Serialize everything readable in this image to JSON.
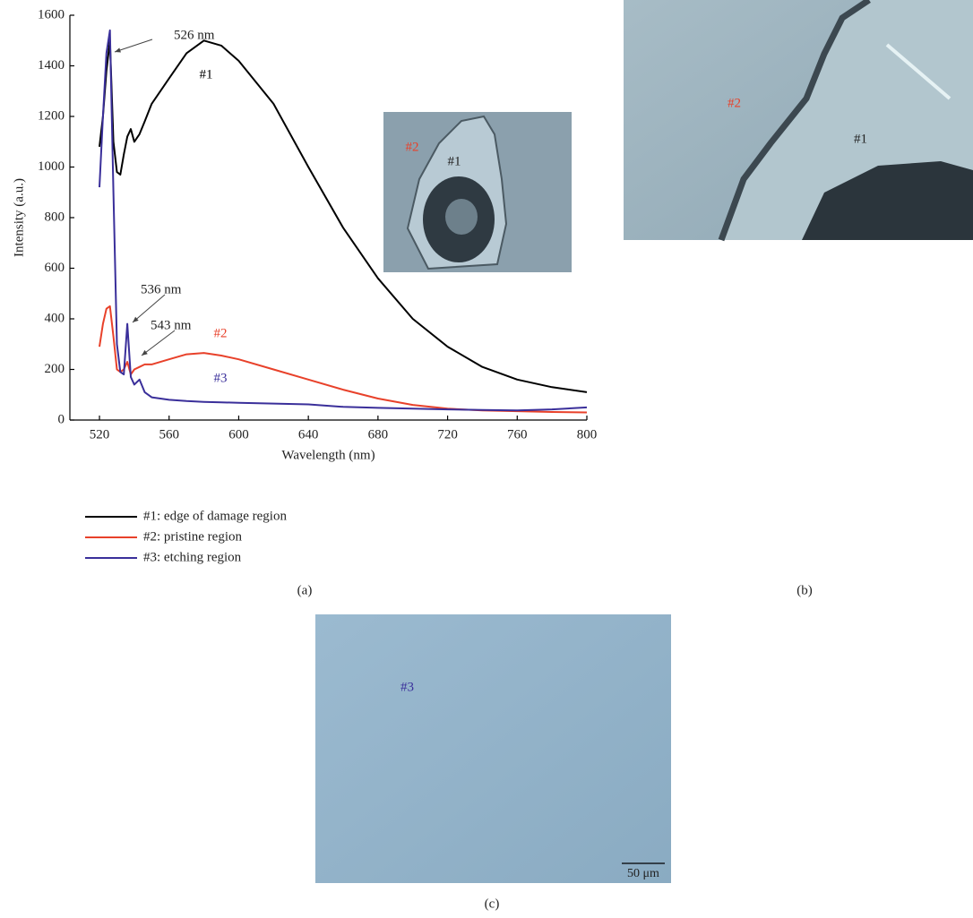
{
  "chart_data": {
    "type": "line",
    "x_label": "Wavelength (nm)",
    "y_label": "Intensity (a.u.)",
    "x": [
      520,
      522,
      524,
      526,
      528,
      530,
      532,
      534,
      536,
      538,
      540,
      543,
      546,
      550,
      560,
      570,
      580,
      590,
      600,
      620,
      640,
      660,
      680,
      700,
      720,
      740,
      760,
      780,
      800
    ],
    "series": [
      {
        "name": "#1: edge of damage region",
        "color": "#000000",
        "values": [
          1080,
          1200,
          1380,
          1500,
          1100,
          980,
          970,
          1050,
          1120,
          1150,
          1100,
          1130,
          1180,
          1250,
          1350,
          1450,
          1500,
          1480,
          1420,
          1250,
          1000,
          760,
          560,
          400,
          290,
          210,
          160,
          130,
          110
        ]
      },
      {
        "name": "#2: pristine region",
        "color": "#e8412a",
        "values": [
          290,
          380,
          440,
          450,
          330,
          200,
          190,
          200,
          230,
          180,
          200,
          210,
          220,
          220,
          240,
          260,
          265,
          255,
          240,
          200,
          160,
          120,
          85,
          60,
          45,
          38,
          35,
          32,
          30
        ]
      },
      {
        "name": "#3: etching region",
        "color": "#3a2f9a",
        "values": [
          920,
          1200,
          1450,
          1540,
          900,
          300,
          190,
          180,
          380,
          170,
          140,
          160,
          110,
          90,
          80,
          75,
          72,
          70,
          68,
          65,
          62,
          52,
          48,
          45,
          42,
          40,
          38,
          42,
          50
        ]
      }
    ],
    "xlim": [
      503,
      800
    ],
    "xticks": [
      520,
      560,
      600,
      640,
      680,
      720,
      760,
      800
    ],
    "ylim": [
      0,
      1600
    ],
    "yticks": [
      0,
      200,
      400,
      600,
      800,
      1000,
      1200,
      1400,
      1600
    ],
    "annotations": [
      "526 nm",
      "536 nm",
      "543 nm"
    ],
    "curve_labels": [
      "#1",
      "#2",
      "#3"
    ],
    "inset_labels": [
      "#2",
      "#1"
    ],
    "legend": "bottom-left",
    "caption": "(a)"
  },
  "images": [
    {
      "labels": [
        "#2",
        "#1"
      ],
      "caption": "(b)"
    },
    {
      "labels": [
        "#3"
      ],
      "scale_bar": "50 μm",
      "caption": "(c)"
    }
  ]
}
